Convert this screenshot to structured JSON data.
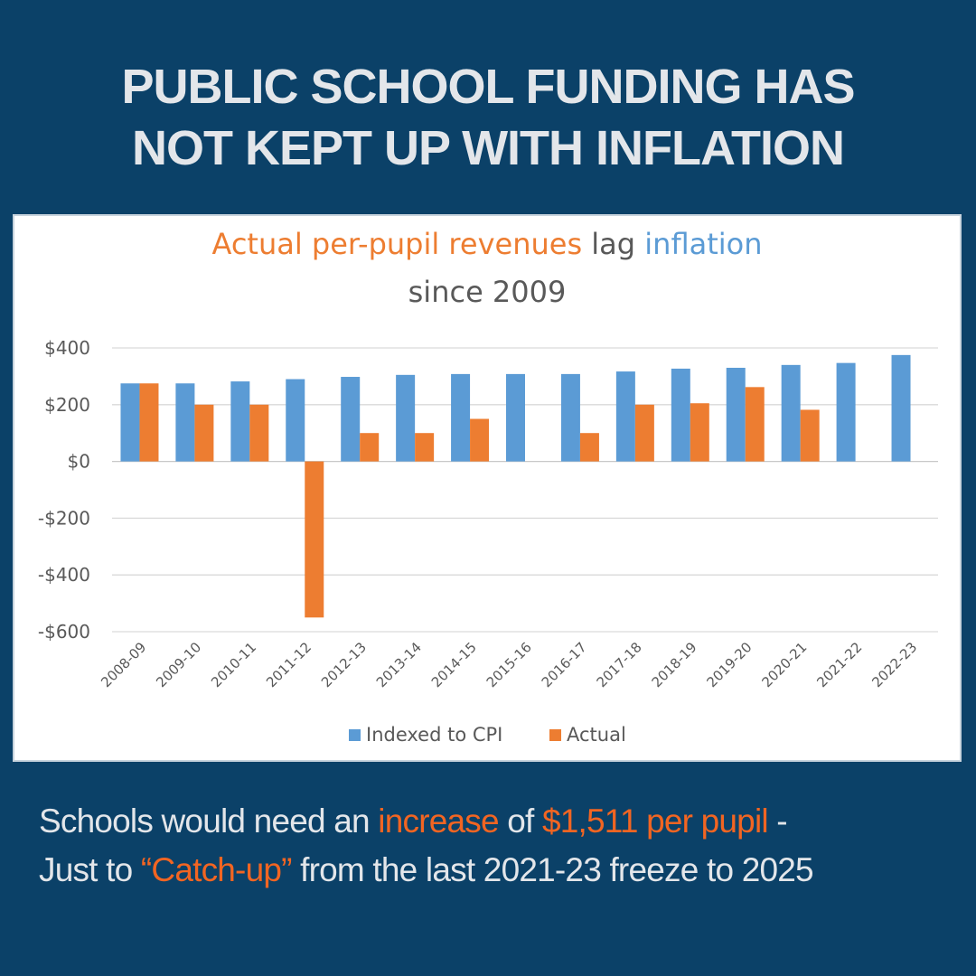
{
  "headline": {
    "line1": "PUBLIC SCHOOL FUNDING HAS",
    "line2": "NOT KEPT UP WITH INFLATION"
  },
  "footer": {
    "line1": {
      "part1": "Schools would need an ",
      "highlight1": "increase",
      "part2": " of ",
      "highlight2": "$1,511 per pupil",
      "part3": " -"
    },
    "line2": {
      "part1": "Just to ",
      "highlight1": "“Catch-up”",
      "part2": " from the last 2021-23 freeze to 2025"
    },
    "highlight_color": "#f26522"
  },
  "chart_data": {
    "type": "bar",
    "title": {
      "line1": [
        {
          "text": "Actual per-pupil revenues",
          "color": "#ed7d31"
        },
        {
          "text": " lag ",
          "color": "#595959"
        },
        {
          "text": "inflation",
          "color": "#5b9bd5"
        }
      ],
      "line2": [
        {
          "text": "since 2009",
          "color": "#595959"
        }
      ]
    },
    "categories": [
      "2008-09",
      "2009-10",
      "2010-11",
      "2011-12",
      "2012-13",
      "2013-14",
      "2014-15",
      "2015-16",
      "2016-17",
      "2017-18",
      "2018-19",
      "2019-20",
      "2020-21",
      "2021-22",
      "2022-23"
    ],
    "series": [
      {
        "name": "Indexed to CPI",
        "color": "#5b9bd5",
        "values": [
          275,
          275,
          282,
          290,
          298,
          305,
          308,
          308,
          308,
          317,
          327,
          330,
          340,
          347,
          375
        ]
      },
      {
        "name": "Actual",
        "color": "#ed7d31",
        "values": [
          275,
          200,
          200,
          -550,
          100,
          100,
          150,
          null,
          100,
          200,
          205,
          262,
          182,
          null,
          null
        ]
      }
    ],
    "ylim": [
      -600,
      400
    ],
    "yticks": [
      400,
      200,
      0,
      -200,
      -400,
      -600
    ],
    "ytick_labels": [
      "$400",
      "$200",
      "$0",
      "-$200",
      "-$400",
      "-$600"
    ],
    "grid": true,
    "legend": "bottom-center"
  }
}
